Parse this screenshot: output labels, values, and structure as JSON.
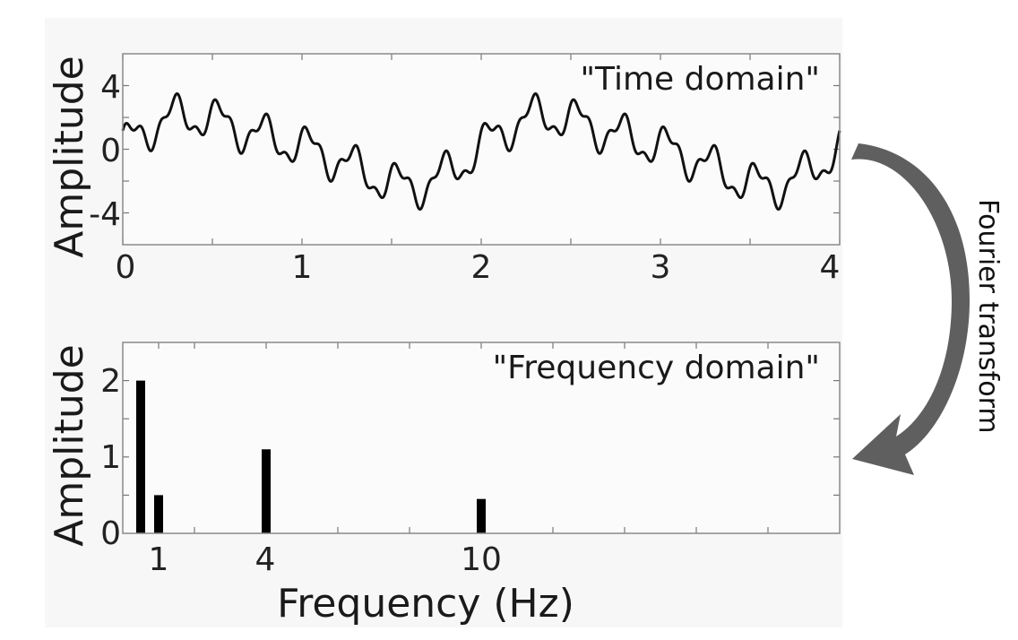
{
  "chart_data": [
    {
      "type": "line",
      "title": "\"Time domain\"",
      "ylabel": "Amplitude",
      "xlabel": "",
      "xlim": [
        0,
        4
      ],
      "ylim": [
        -6,
        6
      ],
      "xticks": [
        "0",
        "1",
        "2",
        "3",
        "4"
      ],
      "yticks": [
        "-4",
        "0",
        "4"
      ],
      "signal_components": [
        {
          "frequency_hz": 0.5,
          "amplitude": 2
        },
        {
          "frequency_hz": 1,
          "amplitude": 0.5
        },
        {
          "frequency_hz": 4,
          "amplitude": 1.1
        },
        {
          "frequency_hz": 10,
          "amplitude": 0.45
        }
      ]
    },
    {
      "type": "bar",
      "title": "\"Frequency domain\"",
      "ylabel": "Amplitude",
      "xlabel": "Frequency (Hz)",
      "ylim": [
        0,
        2.5
      ],
      "xticks": [
        "1",
        "4",
        "10"
      ],
      "yticks": [
        "0",
        "1",
        "2"
      ],
      "x": [
        0.5,
        1,
        4,
        10
      ],
      "values": [
        2,
        0.5,
        1.1,
        0.45
      ]
    }
  ],
  "annotation": {
    "transform_label": "Fourier transform"
  }
}
